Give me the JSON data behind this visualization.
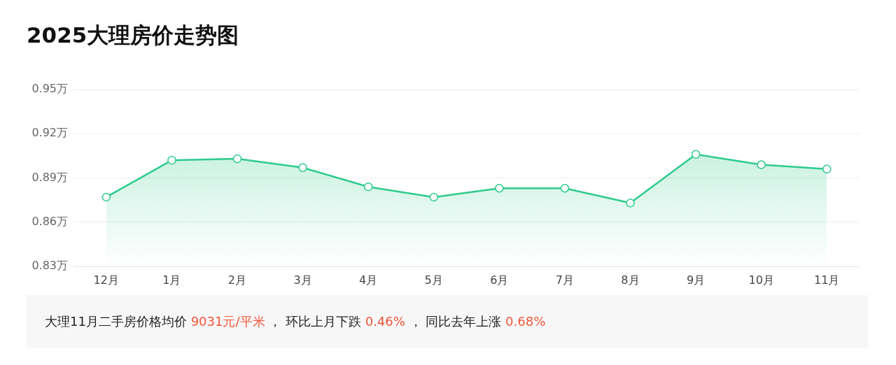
{
  "chart_data": {
    "type": "area",
    "title": "2025大理房价走势图",
    "categories": [
      "12月",
      "1月",
      "2月",
      "3月",
      "4月",
      "5月",
      "6月",
      "7月",
      "8月",
      "9月",
      "10月",
      "11月"
    ],
    "series": [
      {
        "color": "#2ecb8e",
        "values": [
          0.877,
          0.902,
          0.903,
          0.897,
          0.884,
          0.877,
          0.883,
          0.883,
          0.873,
          0.906,
          0.899,
          0.896
        ]
      }
    ],
    "ylim": [
      0.83,
      0.95
    ],
    "yticks": [
      {
        "value": 0.83,
        "label": "0.83万"
      },
      {
        "value": 0.86,
        "label": "0.86万"
      },
      {
        "value": 0.89,
        "label": "0.89万"
      },
      {
        "value": 0.92,
        "label": "0.92万"
      },
      {
        "value": 0.95,
        "label": "0.95万"
      }
    ],
    "grid": "y",
    "legend": false,
    "marker": "circle",
    "line_style": "solid",
    "annotations": [
      "大理11月二手房价格均价 ",
      "9031元/平米",
      " ， 环比上月下跌 ",
      "0.46%",
      " ， 同比去年上涨 ",
      "0.68%"
    ]
  }
}
